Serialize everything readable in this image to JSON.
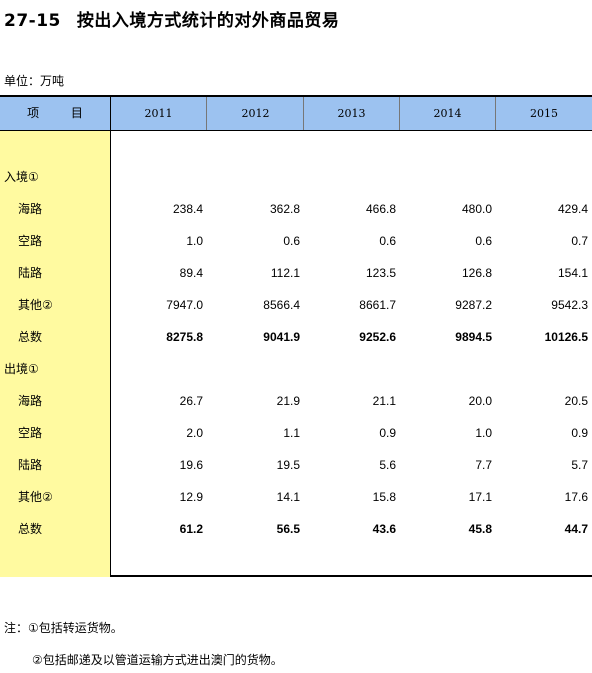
{
  "title": {
    "code": "27-15",
    "text": "按出入境方式统计的对外商品贸易"
  },
  "unit": "单位：万吨",
  "header": {
    "item": "项  目",
    "years": [
      "2011",
      "2012",
      "2013",
      "2014",
      "2015"
    ]
  },
  "rows": [
    {
      "label": "入境①",
      "type": "section",
      "values": []
    },
    {
      "label": "海路",
      "type": "sub",
      "values": [
        "238.4",
        "362.8",
        "466.8",
        "480.0",
        "429.4"
      ]
    },
    {
      "label": "空路",
      "type": "sub",
      "values": [
        "1.0",
        "0.6",
        "0.6",
        "0.6",
        "0.7"
      ]
    },
    {
      "label": "陆路",
      "type": "sub",
      "values": [
        "89.4",
        "112.1",
        "123.5",
        "126.8",
        "154.1"
      ]
    },
    {
      "label": "其他②",
      "type": "sub",
      "values": [
        "7947.0",
        "8566.4",
        "8661.7",
        "9287.2",
        "9542.3"
      ]
    },
    {
      "label": "总数",
      "type": "total",
      "values": [
        "8275.8",
        "9041.9",
        "9252.6",
        "9894.5",
        "10126.5"
      ]
    },
    {
      "label": "出境①",
      "type": "section",
      "values": []
    },
    {
      "label": "海路",
      "type": "sub",
      "values": [
        "26.7",
        "21.9",
        "21.1",
        "20.0",
        "20.5"
      ]
    },
    {
      "label": "空路",
      "type": "sub",
      "values": [
        "2.0",
        "1.1",
        "0.9",
        "1.0",
        "0.9"
      ]
    },
    {
      "label": "陆路",
      "type": "sub",
      "values": [
        "19.6",
        "19.5",
        "5.6",
        "7.7",
        "5.7"
      ]
    },
    {
      "label": "其他②",
      "type": "sub",
      "values": [
        "12.9",
        "14.1",
        "15.8",
        "17.1",
        "17.6"
      ]
    },
    {
      "label": "总数",
      "type": "total",
      "values": [
        "61.2",
        "56.5",
        "43.6",
        "45.8",
        "44.7"
      ]
    }
  ],
  "notes": [
    "注：①包括转运货物。",
    "②包括邮递及以管道运输方式进出澳门的货物。"
  ],
  "colors": {
    "header_bg": "#9cc2f0",
    "label_col_bg": "#fffaa0"
  }
}
